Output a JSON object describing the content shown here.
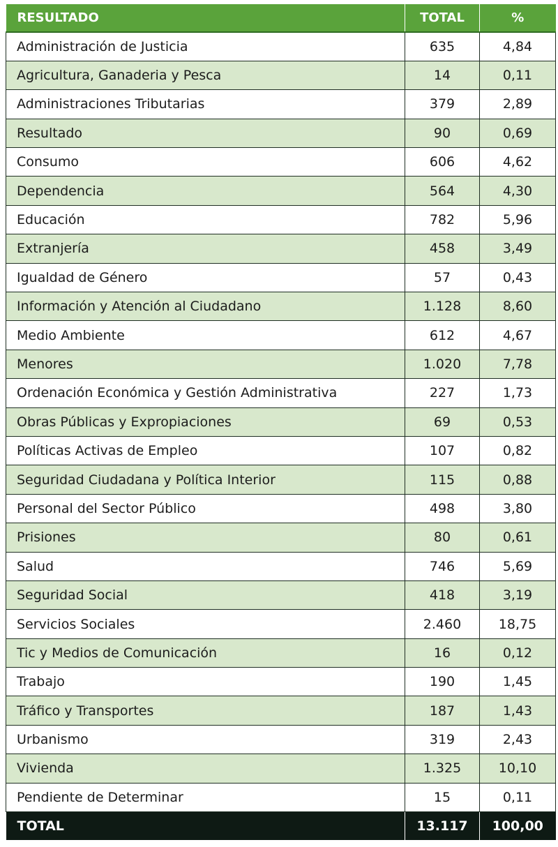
{
  "header": {
    "label": "RESULTADO",
    "total": "TOTAL",
    "pct": "%"
  },
  "rows": [
    {
      "label": "Administración de Justicia",
      "total": "635",
      "pct": "4,84"
    },
    {
      "label": "Agricultura, Ganaderia y Pesca",
      "total": "14",
      "pct": "0,11"
    },
    {
      "label": "Administraciones Tributarias",
      "total": "379",
      "pct": "2,89"
    },
    {
      "label": "Resultado",
      "total": "90",
      "pct": "0,69"
    },
    {
      "label": "Consumo",
      "total": "606",
      "pct": "4,62"
    },
    {
      "label": "Dependencia",
      "total": "564",
      "pct": "4,30"
    },
    {
      "label": "Educación",
      "total": "782",
      "pct": "5,96"
    },
    {
      "label": "Extranjería",
      "total": "458",
      "pct": "3,49"
    },
    {
      "label": "Igualdad de Género",
      "total": "57",
      "pct": "0,43"
    },
    {
      "label": "Información y Atención al Ciudadano",
      "total": "1.128",
      "pct": "8,60"
    },
    {
      "label": "Medio Ambiente",
      "total": "612",
      "pct": "4,67"
    },
    {
      "label": "Menores",
      "total": "1.020",
      "pct": "7,78"
    },
    {
      "label": "Ordenación Económica y Gestión Administrativa",
      "total": "227",
      "pct": "1,73"
    },
    {
      "label": "Obras Públicas y Expropiaciones",
      "total": "69",
      "pct": "0,53"
    },
    {
      "label": "Políticas Activas de Empleo",
      "total": "107",
      "pct": "0,82"
    },
    {
      "label": "Seguridad Ciudadana y Política Interior",
      "total": "115",
      "pct": "0,88"
    },
    {
      "label": "Personal del Sector Público",
      "total": "498",
      "pct": "3,80"
    },
    {
      "label": "Prisiones",
      "total": "80",
      "pct": "0,61"
    },
    {
      "label": "Salud",
      "total": "746",
      "pct": "5,69"
    },
    {
      "label": "Seguridad Social",
      "total": "418",
      "pct": "3,19"
    },
    {
      "label": "Servicios Sociales",
      "total": "2.460",
      "pct": "18,75"
    },
    {
      "label": "Tic y Medios de Comunicación",
      "total": "16",
      "pct": "0,12"
    },
    {
      "label": "Trabajo",
      "total": "190",
      "pct": "1,45"
    },
    {
      "label": "Tráfico y Transportes",
      "total": "187",
      "pct": "1,43"
    },
    {
      "label": "Urbanismo",
      "total": "319",
      "pct": "2,43"
    },
    {
      "label": "Vivienda",
      "total": "1.325",
      "pct": "10,10"
    },
    {
      "label": "Pendiente de Determinar",
      "total": "15",
      "pct": "0,11"
    }
  ],
  "footer": {
    "label": "TOTAL",
    "total": "13.117",
    "pct": "100,00"
  },
  "colors": {
    "header_bg": "#5aa33b",
    "alt_row_bg": "#d8e8cc",
    "footer_bg": "#0e1a14",
    "border": "#1f2e23"
  }
}
